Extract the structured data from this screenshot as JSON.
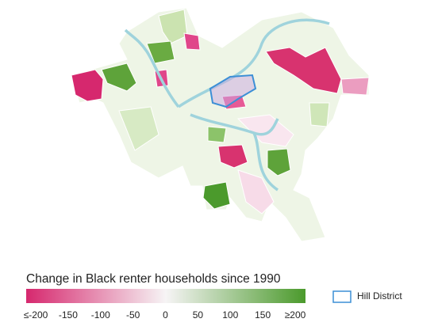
{
  "map": {
    "legend": {
      "title": "Change in Black renter households since 1990",
      "range": [
        -200,
        200
      ],
      "colors": [
        "#d6286e",
        "#f6f4f5",
        "#4b9a2c"
      ],
      "ticks": [
        {
          "value": -200,
          "label": "≤-200"
        },
        -150,
        -100,
        -50,
        0,
        50,
        100,
        150,
        {
          "value": 200,
          "label": "≥200"
        }
      ]
    },
    "boundary_label": "Hill District",
    "boundary_color": "#3c8fd6"
  }
}
